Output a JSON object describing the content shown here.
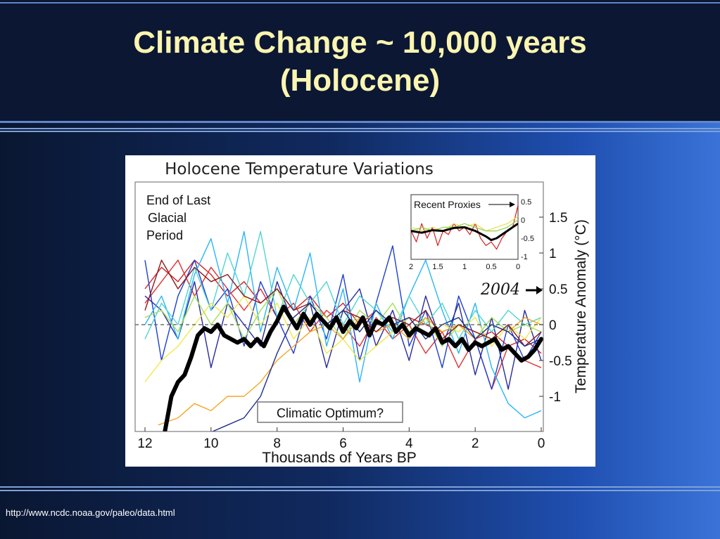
{
  "slide": {
    "title_line1": "Climate Change ~ 10,000 years",
    "title_line2": "(Holocene)",
    "source_url": "http://www.ncdc.noaa.gov/paleo/data.html"
  },
  "colors": {
    "title_text": "#fbf5b0",
    "title_band": "#0b1733",
    "mean_line": "#000000"
  },
  "chart_data": {
    "type": "line",
    "title": "Holocene Temperature Variations",
    "xlabel": "Thousands of Years BP",
    "ylabel": "Temperature Anomaly (°C)",
    "xlim": [
      12,
      0
    ],
    "ylim": [
      -1.5,
      2.0
    ],
    "x_ticks": [
      12,
      10,
      8,
      6,
      4,
      2,
      0
    ],
    "y_ticks": [
      1.5,
      1,
      0.5,
      0,
      -0.5,
      -1
    ],
    "grid": false,
    "annotations": {
      "end_glacial": [
        "End of Last",
        "Glacial",
        "Period"
      ],
      "optimum": "Climatic Optimum?",
      "year_2004": "2004",
      "year_2004_value": 0.45
    },
    "reference_line": 0,
    "mean_series": {
      "x": [
        11.4,
        11.2,
        11.0,
        10.8,
        10.6,
        10.4,
        10.2,
        10.0,
        9.8,
        9.6,
        9.4,
        9.2,
        9.0,
        8.8,
        8.6,
        8.4,
        8.2,
        8.0,
        7.8,
        7.6,
        7.4,
        7.2,
        7.0,
        6.8,
        6.6,
        6.4,
        6.2,
        6.0,
        5.8,
        5.6,
        5.4,
        5.2,
        5.0,
        4.8,
        4.6,
        4.4,
        4.2,
        4.0,
        3.8,
        3.6,
        3.4,
        3.2,
        3.0,
        2.8,
        2.6,
        2.4,
        2.2,
        2.0,
        1.8,
        1.6,
        1.4,
        1.2,
        1.0,
        0.8,
        0.6,
        0.4,
        0.2,
        0.0
      ],
      "y": [
        -1.5,
        -1.0,
        -0.8,
        -0.7,
        -0.45,
        -0.15,
        -0.05,
        -0.1,
        0.0,
        -0.15,
        -0.2,
        -0.25,
        -0.2,
        -0.3,
        -0.2,
        -0.3,
        -0.1,
        0.05,
        0.25,
        0.1,
        -0.05,
        0.15,
        0.0,
        0.15,
        0.05,
        -0.05,
        0.1,
        -0.1,
        0.05,
        -0.05,
        0.1,
        -0.15,
        0.05,
        0.0,
        0.1,
        -0.1,
        0.0,
        -0.15,
        -0.05,
        -0.1,
        -0.15,
        -0.05,
        -0.25,
        -0.2,
        -0.3,
        -0.2,
        -0.35,
        -0.25,
        -0.3,
        -0.25,
        -0.2,
        -0.35,
        -0.3,
        -0.4,
        -0.5,
        -0.45,
        -0.35,
        -0.2
      ]
    },
    "proxy_series": [
      {
        "color": "#d62020",
        "x": [
          12.0,
          11.5,
          11.0,
          10.5,
          10.0,
          9.5,
          9.0,
          8.5,
          8.0,
          7.5,
          7.0,
          6.5,
          6.0,
          5.5,
          5.0,
          4.5,
          4.0,
          3.5,
          3.0,
          2.5,
          2.0,
          1.5,
          1.0,
          0.5,
          0.0
        ],
        "y": [
          0.5,
          0.8,
          0.6,
          0.9,
          0.7,
          0.4,
          0.6,
          0.3,
          0.5,
          0.2,
          0.4,
          0.1,
          0.3,
          0.0,
          0.2,
          -0.1,
          0.1,
          0.0,
          -0.1,
          0.0,
          -0.2,
          -0.1,
          -0.3,
          -0.2,
          -0.4
        ]
      },
      {
        "color": "#e03030",
        "x": [
          12.0,
          11.5,
          11.0,
          10.5,
          10.0,
          9.5,
          9.0,
          8.5,
          8.0,
          7.5,
          7.0,
          6.5,
          6.0,
          5.5,
          5.0,
          4.5,
          4.0,
          3.5,
          3.0,
          2.5,
          2.0,
          1.5,
          1.0,
          0.5,
          0.0
        ],
        "y": [
          0.3,
          0.6,
          0.9,
          0.4,
          0.8,
          0.5,
          0.2,
          0.5,
          0.1,
          0.3,
          -0.1,
          0.2,
          0.0,
          -0.3,
          0.1,
          -0.2,
          0.0,
          -0.4,
          -0.1,
          -0.6,
          -0.2,
          -0.9,
          -0.3,
          -0.5,
          -0.6
        ]
      },
      {
        "color": "#1f3fd0",
        "x": [
          12.0,
          11.5,
          11.0,
          10.5,
          10.0,
          9.5,
          9.0,
          8.5,
          8.0,
          7.5,
          7.0,
          6.5,
          6.0,
          5.5,
          5.0,
          4.5,
          4.0,
          3.5,
          3.0,
          2.5,
          2.0,
          1.5,
          1.0,
          0.5,
          0.0
        ],
        "y": [
          0.9,
          -0.5,
          0.4,
          0.9,
          0.2,
          0.5,
          -0.3,
          0.6,
          0.1,
          -0.4,
          0.4,
          -0.2,
          0.7,
          -0.5,
          0.3,
          1.1,
          -0.3,
          0.2,
          -0.6,
          0.4,
          -0.2,
          -0.9,
          0.0,
          -0.5,
          -0.1
        ]
      },
      {
        "color": "#2a2aa0",
        "x": [
          12.0,
          11.5,
          11.0,
          10.5,
          10.0,
          9.5,
          9.0,
          8.5,
          8.0,
          7.5,
          7.0,
          6.5,
          6.0,
          5.5,
          5.0,
          4.5,
          4.0,
          3.5,
          3.0,
          2.5,
          2.0,
          1.5,
          1.0,
          0.5,
          0.0
        ],
        "y": [
          0.4,
          0.2,
          -0.2,
          0.6,
          -0.6,
          0.3,
          0.0,
          -0.3,
          0.6,
          0.0,
          0.3,
          -0.6,
          0.2,
          0.5,
          -0.3,
          0.2,
          -0.5,
          0.4,
          -0.3,
          0.3,
          -0.7,
          0.1,
          -0.9,
          0.2,
          -0.5
        ]
      },
      {
        "color": "#29b6f6",
        "x": [
          12.0,
          11.5,
          11.0,
          10.5,
          10.0,
          9.5,
          9.0,
          8.5,
          8.0,
          7.5,
          7.0,
          6.5,
          6.0,
          5.5,
          5.0,
          4.5,
          4.0,
          3.5,
          3.0,
          2.5,
          2.0,
          1.5,
          1.0,
          0.5,
          0.0
        ],
        "y": [
          0.0,
          0.4,
          -0.2,
          0.7,
          1.2,
          0.3,
          1.3,
          -0.1,
          0.8,
          0.2,
          1.0,
          -0.3,
          0.5,
          -0.8,
          0.3,
          -0.2,
          0.4,
          0.9,
          0.2,
          -0.4,
          0.3,
          -0.6,
          -1.1,
          -1.3,
          -1.2
        ]
      },
      {
        "color": "#4fd6d0",
        "x": [
          12.0,
          11.5,
          11.0,
          10.5,
          10.0,
          9.5,
          9.0,
          8.5,
          8.0,
          7.5,
          7.0,
          6.5,
          6.0,
          5.5,
          5.0,
          4.5,
          4.0,
          3.5,
          3.0,
          2.5,
          2.0,
          1.5,
          1.0,
          0.5,
          0.0
        ],
        "y": [
          -0.2,
          0.3,
          0.0,
          0.8,
          0.2,
          1.0,
          0.4,
          1.3,
          0.1,
          0.7,
          0.3,
          0.6,
          0.0,
          0.4,
          0.2,
          -0.1,
          0.4,
          0.0,
          0.3,
          -0.2,
          0.2,
          -0.1,
          0.2,
          0.0,
          0.1
        ]
      },
      {
        "color": "#f2e84a",
        "x": [
          12.0,
          11.5,
          11.0,
          10.5,
          10.0,
          9.5,
          9.0,
          8.5,
          8.0,
          7.5,
          7.0,
          6.5,
          6.0,
          5.5,
          5.0,
          4.5,
          4.0,
          3.5,
          3.0,
          2.5,
          2.0,
          1.5,
          1.0,
          0.5,
          0.0
        ],
        "y": [
          -0.8,
          -0.5,
          -0.3,
          0.0,
          0.3,
          0.1,
          0.4,
          0.0,
          0.3,
          -0.2,
          0.1,
          -0.4,
          -0.2,
          -0.5,
          -0.3,
          -0.1,
          0.1,
          -0.2,
          0.0,
          -0.1,
          0.1,
          -0.3,
          0.0,
          -0.2,
          0.1
        ]
      },
      {
        "color": "#a3e05a",
        "x": [
          12.0,
          11.5,
          11.0,
          10.5,
          10.0,
          9.5,
          9.0,
          8.5,
          8.0,
          7.5,
          7.0,
          6.5,
          6.0,
          5.5,
          5.0,
          4.5,
          4.0,
          3.5,
          3.0,
          2.5,
          2.0,
          1.5,
          1.0,
          0.5,
          0.0
        ],
        "y": [
          0.1,
          0.2,
          -0.1,
          0.4,
          0.0,
          0.3,
          -0.2,
          0.2,
          0.5,
          0.0,
          0.3,
          0.1,
          -0.2,
          0.2,
          0.0,
          0.3,
          -0.1,
          0.1,
          -0.3,
          0.0,
          -0.2,
          0.1,
          -0.1,
          0.0,
          -0.1
        ]
      },
      {
        "color": "#f5a623",
        "x": [
          11.6,
          11.0,
          10.5,
          10.0,
          9.5,
          9.0,
          8.5,
          8.0,
          7.5,
          7.0,
          6.5,
          6.0,
          5.5,
          5.0,
          4.5,
          4.0,
          3.5,
          3.0,
          2.5,
          2.0,
          1.5,
          1.0,
          0.5,
          0.0
        ],
        "y": [
          -1.4,
          -1.3,
          -1.1,
          -1.2,
          -1.0,
          -1.0,
          -0.8,
          -0.5,
          -0.3,
          -0.1,
          0.0,
          -0.2,
          0.1,
          -0.1,
          0.0,
          -0.2,
          0.1,
          -0.1,
          0.0,
          -0.2,
          0.0,
          -0.1,
          0.1,
          0.0
        ]
      },
      {
        "color": "#8b1a1a",
        "x": [
          12.0,
          11.5,
          11.0,
          10.5,
          10.0,
          9.5,
          9.0,
          8.5,
          8.0,
          7.5,
          7.0,
          6.5,
          6.0,
          5.5,
          5.0,
          4.5,
          4.0,
          3.5,
          3.0,
          2.5,
          2.0,
          1.5,
          1.0,
          0.5,
          0.0
        ],
        "y": [
          0.2,
          0.9,
          0.5,
          0.8,
          0.6,
          0.7,
          0.4,
          0.3,
          0.5,
          0.2,
          0.3,
          0.0,
          0.2,
          0.1,
          -0.1,
          0.1,
          0.0,
          0.2,
          -0.2,
          0.0,
          -0.1,
          -0.2,
          0.0,
          -0.3,
          -0.1
        ]
      },
      {
        "color": "#1d2f8f",
        "x": [
          10.5,
          10.0,
          9.5,
          9.0,
          8.5,
          8.0,
          7.5,
          7.0,
          6.5,
          6.0,
          5.5,
          5.0,
          4.5,
          4.0,
          3.5,
          3.0,
          2.5,
          2.0,
          1.5,
          1.0,
          0.5,
          0.0
        ],
        "y": [
          -1.5,
          -1.5,
          -1.4,
          -1.3,
          -1.0,
          -0.4,
          0.1,
          0.3,
          0.0,
          0.2,
          -0.1,
          0.2,
          0.0,
          0.1,
          -0.2,
          0.0,
          0.1,
          -0.2,
          0.0,
          -0.1,
          -0.3,
          -0.2
        ]
      }
    ],
    "inset": {
      "title": "Recent Proxies",
      "x_ticks": [
        2,
        1.5,
        1,
        0.5,
        0
      ],
      "y_ticks": [
        0.5,
        0,
        -0.5,
        -1
      ],
      "xlim": [
        2,
        0
      ],
      "ylim": [
        -1,
        0.5
      ],
      "series": [
        {
          "color": "#d62020",
          "x": [
            2.0,
            1.9,
            1.8,
            1.7,
            1.6,
            1.5,
            1.4,
            1.3,
            1.2,
            1.1,
            1.0,
            0.9,
            0.8,
            0.7,
            0.6,
            0.5,
            0.4,
            0.3,
            0.2,
            0.1,
            0.05,
            0.0
          ],
          "y": [
            -0.3,
            -0.6,
            -0.1,
            -0.5,
            -0.2,
            -0.7,
            -0.3,
            -0.4,
            -0.1,
            -0.3,
            -0.2,
            -0.4,
            -0.1,
            -0.5,
            -0.7,
            -0.6,
            -0.8,
            -0.5,
            -0.3,
            -0.2,
            0.1,
            0.4
          ]
        },
        {
          "color": "#e5e04a",
          "x": [
            2.0,
            1.8,
            1.6,
            1.4,
            1.2,
            1.0,
            0.8,
            0.6,
            0.4,
            0.2,
            0.0
          ],
          "y": [
            -0.2,
            -0.3,
            -0.2,
            -0.3,
            -0.1,
            -0.2,
            -0.1,
            -0.3,
            -0.2,
            -0.1,
            0.1
          ]
        },
        {
          "color": "#8bd44a",
          "x": [
            2.0,
            1.8,
            1.6,
            1.4,
            1.2,
            1.0,
            0.8,
            0.6,
            0.4,
            0.2,
            0.0
          ],
          "y": [
            -0.3,
            -0.2,
            -0.3,
            -0.2,
            -0.2,
            -0.1,
            -0.2,
            -0.3,
            -0.3,
            -0.2,
            0.0
          ]
        },
        {
          "color": "#000000",
          "x": [
            2.0,
            1.8,
            1.6,
            1.4,
            1.2,
            1.0,
            0.8,
            0.6,
            0.5,
            0.4,
            0.3,
            0.2,
            0.1,
            0.0
          ],
          "y": [
            -0.3,
            -0.35,
            -0.28,
            -0.3,
            -0.22,
            -0.2,
            -0.3,
            -0.45,
            -0.55,
            -0.5,
            -0.4,
            -0.3,
            -0.2,
            -0.1
          ]
        }
      ]
    }
  }
}
